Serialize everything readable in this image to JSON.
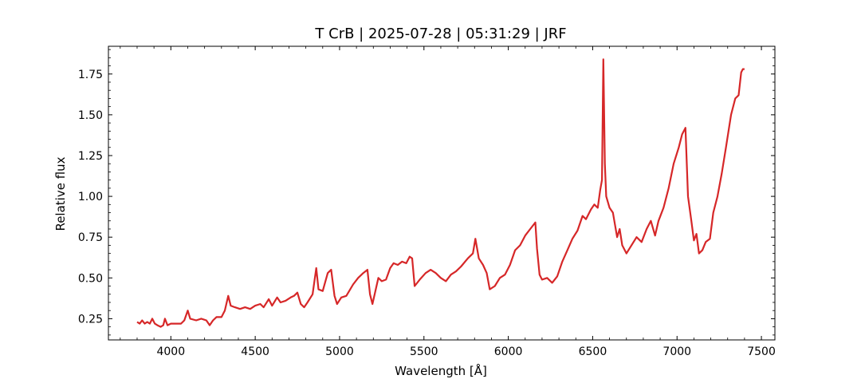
{
  "chart_data": {
    "type": "line",
    "title": "T CrB | 2025-07-28 | 05:31:29 | JRF",
    "xlabel": "Wavelength [Å]",
    "ylabel": "Relative flux",
    "xlim": [
      3630,
      7580
    ],
    "ylim": [
      0.12,
      1.92
    ],
    "x_ticks": [
      4000,
      4500,
      5000,
      5500,
      6000,
      6500,
      7000,
      7500
    ],
    "x_tick_labels": [
      "4000",
      "4500",
      "5000",
      "5500",
      "6000",
      "6500",
      "7000",
      "7500"
    ],
    "y_ticks": [
      0.25,
      0.5,
      0.75,
      1.0,
      1.25,
      1.5,
      1.75
    ],
    "y_tick_labels": [
      "0.25",
      "0.50",
      "0.75",
      "1.00",
      "1.25",
      "1.50",
      "1.75"
    ],
    "grid": false,
    "series": [
      {
        "color": "#d62728",
        "points": [
          [
            3800,
            0.23
          ],
          [
            3815,
            0.22
          ],
          [
            3830,
            0.24
          ],
          [
            3845,
            0.22
          ],
          [
            3860,
            0.23
          ],
          [
            3875,
            0.22
          ],
          [
            3890,
            0.25
          ],
          [
            3905,
            0.22
          ],
          [
            3920,
            0.21
          ],
          [
            3940,
            0.2
          ],
          [
            3955,
            0.21
          ],
          [
            3965,
            0.25
          ],
          [
            3980,
            0.21
          ],
          [
            4000,
            0.22
          ],
          [
            4030,
            0.22
          ],
          [
            4060,
            0.22
          ],
          [
            4080,
            0.24
          ],
          [
            4100,
            0.3
          ],
          [
            4115,
            0.25
          ],
          [
            4150,
            0.24
          ],
          [
            4180,
            0.25
          ],
          [
            4210,
            0.24
          ],
          [
            4230,
            0.21
          ],
          [
            4250,
            0.24
          ],
          [
            4270,
            0.26
          ],
          [
            4300,
            0.26
          ],
          [
            4320,
            0.3
          ],
          [
            4340,
            0.39
          ],
          [
            4355,
            0.33
          ],
          [
            4380,
            0.32
          ],
          [
            4410,
            0.31
          ],
          [
            4440,
            0.32
          ],
          [
            4470,
            0.31
          ],
          [
            4500,
            0.33
          ],
          [
            4530,
            0.34
          ],
          [
            4550,
            0.32
          ],
          [
            4580,
            0.37
          ],
          [
            4600,
            0.33
          ],
          [
            4630,
            0.38
          ],
          [
            4650,
            0.35
          ],
          [
            4680,
            0.36
          ],
          [
            4710,
            0.38
          ],
          [
            4730,
            0.39
          ],
          [
            4750,
            0.41
          ],
          [
            4770,
            0.34
          ],
          [
            4790,
            0.32
          ],
          [
            4810,
            0.35
          ],
          [
            4840,
            0.4
          ],
          [
            4862,
            0.56
          ],
          [
            4875,
            0.43
          ],
          [
            4900,
            0.42
          ],
          [
            4930,
            0.53
          ],
          [
            4950,
            0.55
          ],
          [
            4970,
            0.39
          ],
          [
            4985,
            0.34
          ],
          [
            5010,
            0.38
          ],
          [
            5040,
            0.39
          ],
          [
            5080,
            0.46
          ],
          [
            5110,
            0.5
          ],
          [
            5140,
            0.53
          ],
          [
            5165,
            0.55
          ],
          [
            5180,
            0.4
          ],
          [
            5195,
            0.34
          ],
          [
            5230,
            0.5
          ],
          [
            5250,
            0.48
          ],
          [
            5275,
            0.49
          ],
          [
            5300,
            0.56
          ],
          [
            5320,
            0.59
          ],
          [
            5345,
            0.58
          ],
          [
            5370,
            0.6
          ],
          [
            5395,
            0.59
          ],
          [
            5415,
            0.63
          ],
          [
            5430,
            0.62
          ],
          [
            5445,
            0.45
          ],
          [
            5475,
            0.49
          ],
          [
            5510,
            0.53
          ],
          [
            5540,
            0.55
          ],
          [
            5570,
            0.53
          ],
          [
            5600,
            0.5
          ],
          [
            5630,
            0.48
          ],
          [
            5660,
            0.52
          ],
          [
            5690,
            0.54
          ],
          [
            5720,
            0.57
          ],
          [
            5760,
            0.62
          ],
          [
            5790,
            0.65
          ],
          [
            5805,
            0.74
          ],
          [
            5825,
            0.62
          ],
          [
            5850,
            0.58
          ],
          [
            5872,
            0.53
          ],
          [
            5890,
            0.43
          ],
          [
            5920,
            0.45
          ],
          [
            5950,
            0.5
          ],
          [
            5980,
            0.52
          ],
          [
            6010,
            0.58
          ],
          [
            6040,
            0.67
          ],
          [
            6070,
            0.7
          ],
          [
            6100,
            0.76
          ],
          [
            6130,
            0.8
          ],
          [
            6160,
            0.84
          ],
          [
            6170,
            0.68
          ],
          [
            6185,
            0.52
          ],
          [
            6200,
            0.49
          ],
          [
            6230,
            0.5
          ],
          [
            6260,
            0.47
          ],
          [
            6290,
            0.51
          ],
          [
            6320,
            0.6
          ],
          [
            6350,
            0.67
          ],
          [
            6380,
            0.74
          ],
          [
            6410,
            0.79
          ],
          [
            6440,
            0.88
          ],
          [
            6460,
            0.86
          ],
          [
            6490,
            0.92
          ],
          [
            6510,
            0.95
          ],
          [
            6530,
            0.93
          ],
          [
            6545,
            1.04
          ],
          [
            6555,
            1.1
          ],
          [
            6563,
            1.84
          ],
          [
            6572,
            1.2
          ],
          [
            6580,
            1.0
          ],
          [
            6600,
            0.93
          ],
          [
            6620,
            0.9
          ],
          [
            6645,
            0.75
          ],
          [
            6660,
            0.8
          ],
          [
            6675,
            0.7
          ],
          [
            6700,
            0.65
          ],
          [
            6730,
            0.7
          ],
          [
            6760,
            0.75
          ],
          [
            6790,
            0.72
          ],
          [
            6820,
            0.8
          ],
          [
            6845,
            0.85
          ],
          [
            6870,
            0.76
          ],
          [
            6890,
            0.85
          ],
          [
            6920,
            0.93
          ],
          [
            6950,
            1.05
          ],
          [
            6980,
            1.2
          ],
          [
            7010,
            1.3
          ],
          [
            7030,
            1.38
          ],
          [
            7050,
            1.42
          ],
          [
            7065,
            1.0
          ],
          [
            7085,
            0.85
          ],
          [
            7100,
            0.73
          ],
          [
            7115,
            0.77
          ],
          [
            7130,
            0.65
          ],
          [
            7150,
            0.67
          ],
          [
            7170,
            0.72
          ],
          [
            7195,
            0.74
          ],
          [
            7215,
            0.9
          ],
          [
            7240,
            1.0
          ],
          [
            7265,
            1.14
          ],
          [
            7290,
            1.3
          ],
          [
            7320,
            1.5
          ],
          [
            7345,
            1.6
          ],
          [
            7365,
            1.62
          ],
          [
            7380,
            1.76
          ],
          [
            7390,
            1.78
          ],
          [
            7400,
            1.78
          ]
        ]
      }
    ]
  }
}
